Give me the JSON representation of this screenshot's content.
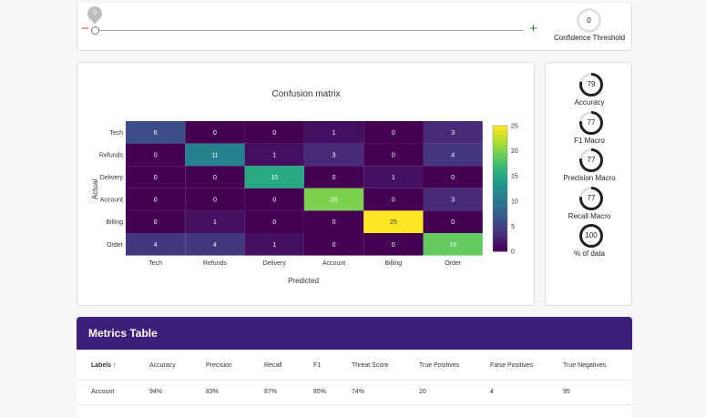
{
  "slider": {
    "minus": "−",
    "plus": "+",
    "pin_value": "0",
    "threshold_value": "0",
    "threshold_label": "Confidence Threshold"
  },
  "confusion": {
    "title": "Confusion matrix",
    "xlabel": "Predicted",
    "ylabel": "Actual",
    "colorbar_ticks": [
      "25",
      "20",
      "15",
      "10",
      "5",
      "0"
    ]
  },
  "chart_data": {
    "type": "heatmap",
    "title": "Confusion matrix",
    "xlabel": "Predicted",
    "ylabel": "Actual",
    "rows": [
      "Tech",
      "Refunds",
      "Delivery",
      "Account",
      "Billing",
      "Order"
    ],
    "columns": [
      "Tech",
      "Refunds",
      "Delivery",
      "Account",
      "Billing",
      "Order"
    ],
    "values": [
      [
        6,
        0,
        0,
        1,
        0,
        3
      ],
      [
        0,
        11,
        1,
        3,
        0,
        4
      ],
      [
        0,
        0,
        15,
        0,
        1,
        0
      ],
      [
        0,
        0,
        0,
        20,
        0,
        3
      ],
      [
        0,
        1,
        0,
        0,
        25,
        0
      ],
      [
        4,
        4,
        1,
        0,
        0,
        19
      ]
    ],
    "colorbar_range": [
      0,
      25
    ],
    "colormap": "viridis"
  },
  "side_metrics": [
    {
      "value": "79",
      "label": "Accuracy",
      "fraction": 0.79
    },
    {
      "value": "77",
      "label": "F1 Macro",
      "fraction": 0.77
    },
    {
      "value": "77",
      "label": "Precision Macro",
      "fraction": 0.77
    },
    {
      "value": "77",
      "label": "Recall Macro",
      "fraction": 0.77
    },
    {
      "value": "100",
      "label": "% of data",
      "fraction": 1.0
    }
  ],
  "metrics_table": {
    "title": "Metrics Table",
    "columns": [
      "Labels ↑",
      "Accuracy",
      "Precision",
      "Recall",
      "F1",
      "Threat Score",
      "True Positives",
      "False Positives",
      "True Negatives"
    ],
    "rows": [
      [
        "Account",
        "94%",
        "83%",
        "87%",
        "85%",
        "74%",
        "20",
        "4",
        "95"
      ]
    ]
  },
  "colors": {
    "header_bg": "#3b1f78",
    "gauge_ring": "#222222",
    "gauge_track": "#e0e0e0",
    "minus": "#e53935",
    "plus": "#2e7d32"
  }
}
